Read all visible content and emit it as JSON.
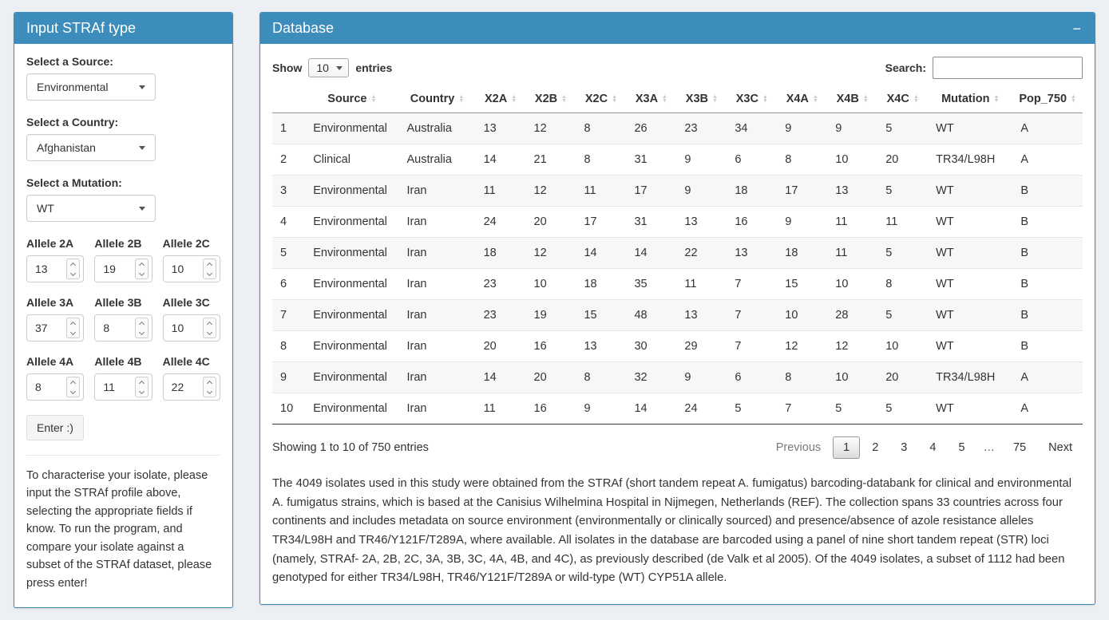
{
  "left_panel": {
    "title": "Input STRAf type",
    "source_label": "Select a Source:",
    "source_value": "Environmental",
    "country_label": "Select a Country:",
    "country_value": "Afghanistan",
    "mutation_label": "Select a Mutation:",
    "mutation_value": "WT",
    "alleles": [
      {
        "label": "Allele 2A",
        "value": "13"
      },
      {
        "label": "Allele 2B",
        "value": "19"
      },
      {
        "label": "Allele 2C",
        "value": "10"
      },
      {
        "label": "Allele 3A",
        "value": "37"
      },
      {
        "label": "Allele 3B",
        "value": "8"
      },
      {
        "label": "Allele 3C",
        "value": "10"
      },
      {
        "label": "Allele 4A",
        "value": "8"
      },
      {
        "label": "Allele 4B",
        "value": "11"
      },
      {
        "label": "Allele 4C",
        "value": "22"
      }
    ],
    "enter_button": "Enter :)",
    "help_text": "To characterise your isolate, please input the STRAf profile above, selecting the appropriate fields if know. To run the program, and compare your isolate against a subset of the STRAf dataset, please press enter!"
  },
  "database_panel": {
    "title": "Database",
    "collapse_icon": "−",
    "show_label": "Show",
    "page_length": "10",
    "entries_label": "entries",
    "search_label": "Search:",
    "search_value": "",
    "table": {
      "columns": [
        "",
        "Source",
        "Country",
        "X2A",
        "X2B",
        "X2C",
        "X3A",
        "X3B",
        "X3C",
        "X4A",
        "X4B",
        "X4C",
        "Mutation",
        "Pop_750"
      ],
      "rows": [
        [
          "1",
          "Environmental",
          "Australia",
          "13",
          "12",
          "8",
          "26",
          "23",
          "34",
          "9",
          "9",
          "5",
          "WT",
          "A"
        ],
        [
          "2",
          "Clinical",
          "Australia",
          "14",
          "21",
          "8",
          "31",
          "9",
          "6",
          "8",
          "10",
          "20",
          "TR34/L98H",
          "A"
        ],
        [
          "3",
          "Environmental",
          "Iran",
          "11",
          "12",
          "11",
          "17",
          "9",
          "18",
          "17",
          "13",
          "5",
          "WT",
          "B"
        ],
        [
          "4",
          "Environmental",
          "Iran",
          "24",
          "20",
          "17",
          "31",
          "13",
          "16",
          "9",
          "11",
          "11",
          "WT",
          "B"
        ],
        [
          "5",
          "Environmental",
          "Iran",
          "18",
          "12",
          "14",
          "14",
          "22",
          "13",
          "18",
          "11",
          "5",
          "WT",
          "B"
        ],
        [
          "6",
          "Environmental",
          "Iran",
          "23",
          "10",
          "18",
          "35",
          "11",
          "7",
          "15",
          "10",
          "8",
          "WT",
          "B"
        ],
        [
          "7",
          "Environmental",
          "Iran",
          "23",
          "19",
          "15",
          "48",
          "13",
          "7",
          "10",
          "28",
          "5",
          "WT",
          "B"
        ],
        [
          "8",
          "Environmental",
          "Iran",
          "20",
          "16",
          "13",
          "30",
          "29",
          "7",
          "12",
          "12",
          "10",
          "WT",
          "B"
        ],
        [
          "9",
          "Environmental",
          "Iran",
          "14",
          "20",
          "8",
          "32",
          "9",
          "6",
          "8",
          "10",
          "20",
          "TR34/L98H",
          "A"
        ],
        [
          "10",
          "Environmental",
          "Iran",
          "11",
          "16",
          "9",
          "14",
          "24",
          "5",
          "7",
          "5",
          "5",
          "WT",
          "A"
        ]
      ]
    },
    "info_text": "Showing 1 to 10 of 750 entries",
    "pagination": [
      {
        "label": "Previous",
        "state": "disabled"
      },
      {
        "label": "1",
        "state": "active"
      },
      {
        "label": "2",
        "state": "normal"
      },
      {
        "label": "3",
        "state": "normal"
      },
      {
        "label": "4",
        "state": "normal"
      },
      {
        "label": "5",
        "state": "normal"
      },
      {
        "label": "…",
        "state": "ellipsis"
      },
      {
        "label": "75",
        "state": "normal"
      },
      {
        "label": "Next",
        "state": "normal"
      }
    ],
    "description": "The 4049 isolates used in this study were obtained from the STRAf (short tandem repeat A. fumigatus) barcoding-databank for clinical and environmental A. fumigatus strains, which is based at the Canisius Wilhelmina Hospital in Nijmegen, Netherlands (REF). The collection spans 33 countries across four continents and includes metadata on source environment (environmentally or clinically sourced) and presence/absence of azole resistance alleles TR34/L98H and TR46/Y121F/T289A, where available. All isolates in the database are barcoded using a panel of nine short tandem repeat (STR) loci (namely, STRAf- 2A, 2B, 2C, 3A, 3B, 3C, 4A, 4B, and 4C), as previously described (de Valk et al 2005). Of the 4049 isolates, a subset of 1112 had been genotyped for either TR34/L98H, TR46/Y121F/T289A or wild-type (WT) CYP51A allele."
  },
  "colors": {
    "header_blue": "#3c8dbc",
    "page_background": "#ecf0f5",
    "stripe": "#f7f7f7"
  }
}
